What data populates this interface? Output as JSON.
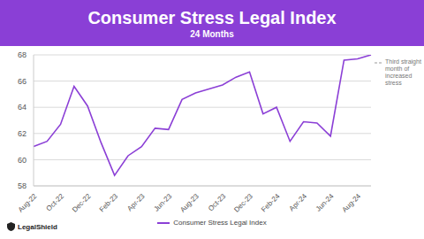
{
  "chart_data": {
    "type": "line",
    "title": "Consumer Stress Legal Index",
    "subtitle": "24 Months",
    "categories": [
      "Aug-22",
      null,
      "Oct-22",
      null,
      "Dec-22",
      null,
      "Feb-23",
      null,
      "Apr-23",
      null,
      "Jun-23",
      null,
      "Aug-23",
      null,
      "Oct-23",
      null,
      "Dec-23",
      null,
      "Feb-24",
      null,
      "Apr-24",
      null,
      "Jun-24",
      null,
      "Aug-24",
      null
    ],
    "series": [
      {
        "name": "Consumer Stress Legal Index",
        "color": "#8b3fd6",
        "values": [
          61,
          61.4,
          62.7,
          65.6,
          64.1,
          61.3,
          58.8,
          60.3,
          61,
          62.4,
          62.3,
          64.6,
          65.1,
          65.4,
          65.7,
          66.3,
          66.7,
          63.5,
          64,
          61.4,
          62.9,
          62.8,
          61.8,
          67.6,
          67.7,
          68
        ]
      }
    ],
    "ylim": [
      58,
      68
    ],
    "yticks": [
      58,
      60,
      62,
      64,
      66,
      68
    ],
    "grid": true,
    "legend": "bottom",
    "annotations": [
      "Third straight month of increased stress"
    ],
    "logo": "LegalShield"
  }
}
